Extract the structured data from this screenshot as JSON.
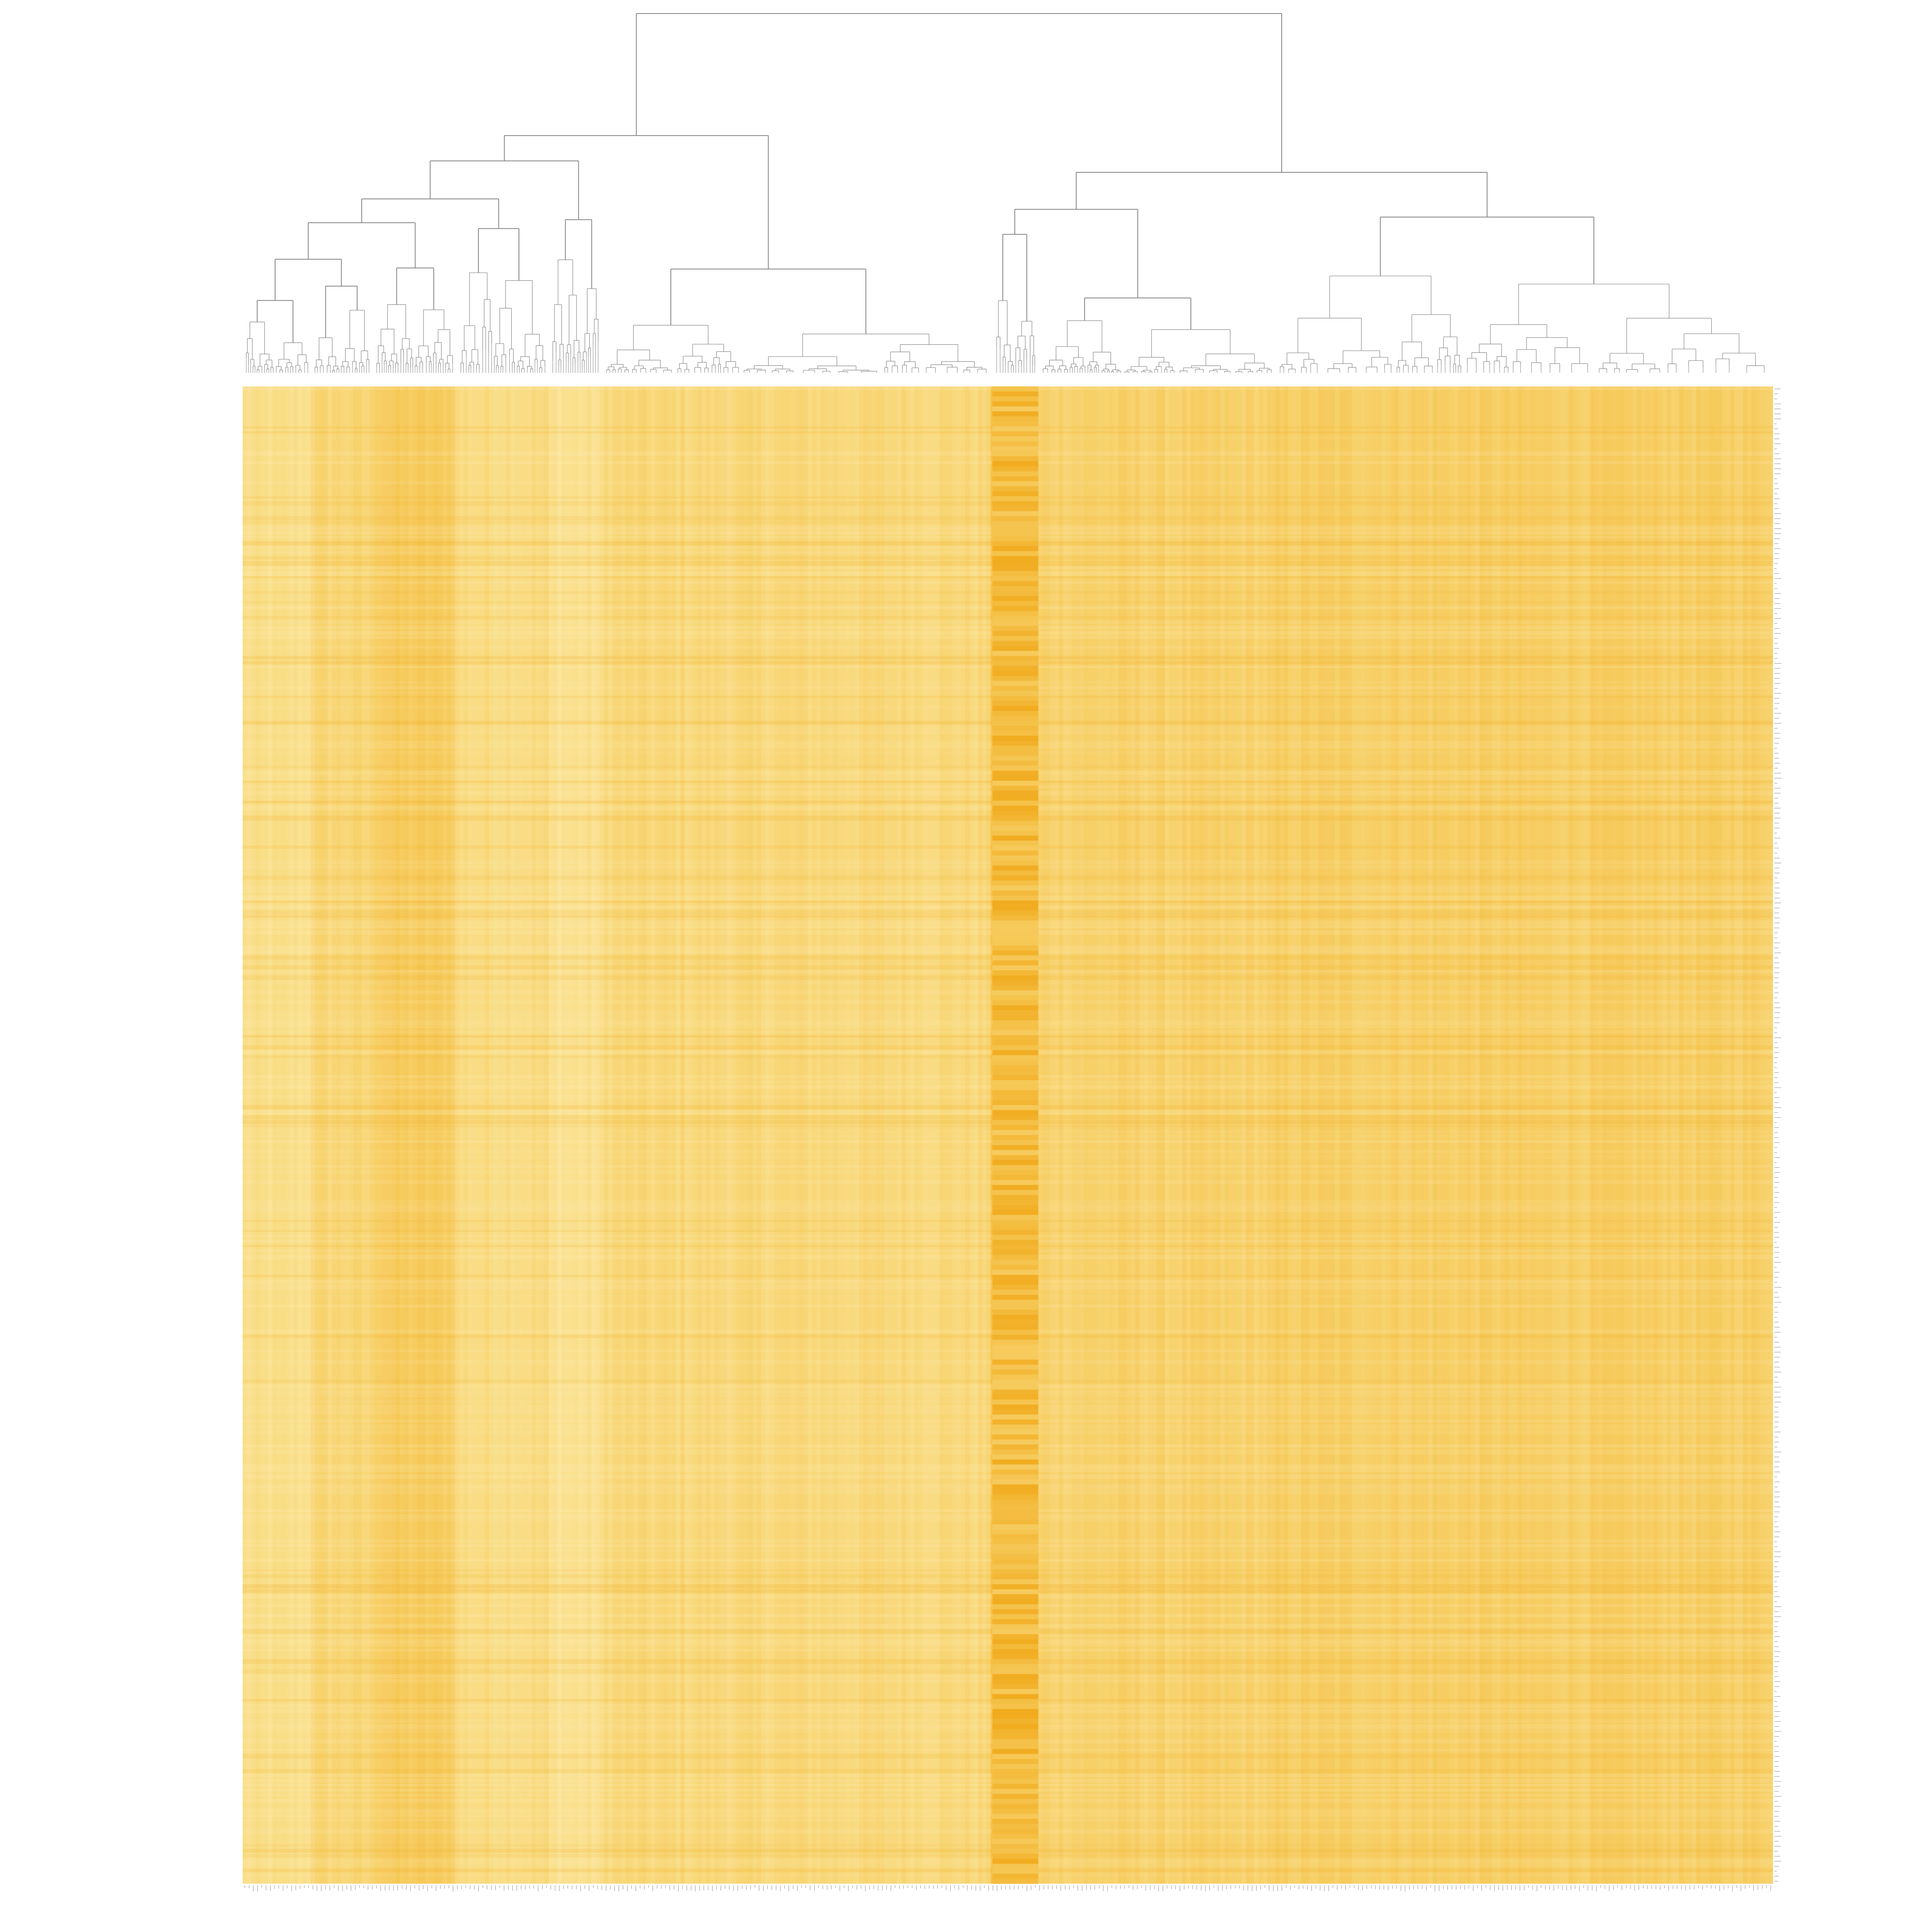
{
  "chart_data": {
    "type": "heatmap",
    "title": "",
    "xlabel": "",
    "ylabel": "",
    "grid": false,
    "legend": "none",
    "colormap": [
      "#fef3c4",
      "#f9dd86",
      "#f5c24a",
      "#f0a716"
    ],
    "column_clusters": [
      {
        "name": "",
        "weight": 0.045,
        "level": 0.3
      },
      {
        "name": "",
        "weight": 0.04,
        "level": 0.42
      },
      {
        "name": "",
        "weight": 0.055,
        "level": 0.55
      },
      {
        "name": "",
        "weight": 0.06,
        "level": 0.36
      },
      {
        "name": "",
        "weight": 0.035,
        "level": 0.28
      },
      {
        "name": "",
        "weight": 0.255,
        "level": 0.4
      },
      {
        "name": "",
        "weight": 0.03,
        "level": 0.7
      },
      {
        "name": "",
        "weight": 0.155,
        "level": 0.48
      },
      {
        "name": "",
        "weight": 0.325,
        "level": 0.52
      }
    ],
    "dendrogram_color": "#808080",
    "tick_label_color": "#9a9a9a"
  }
}
